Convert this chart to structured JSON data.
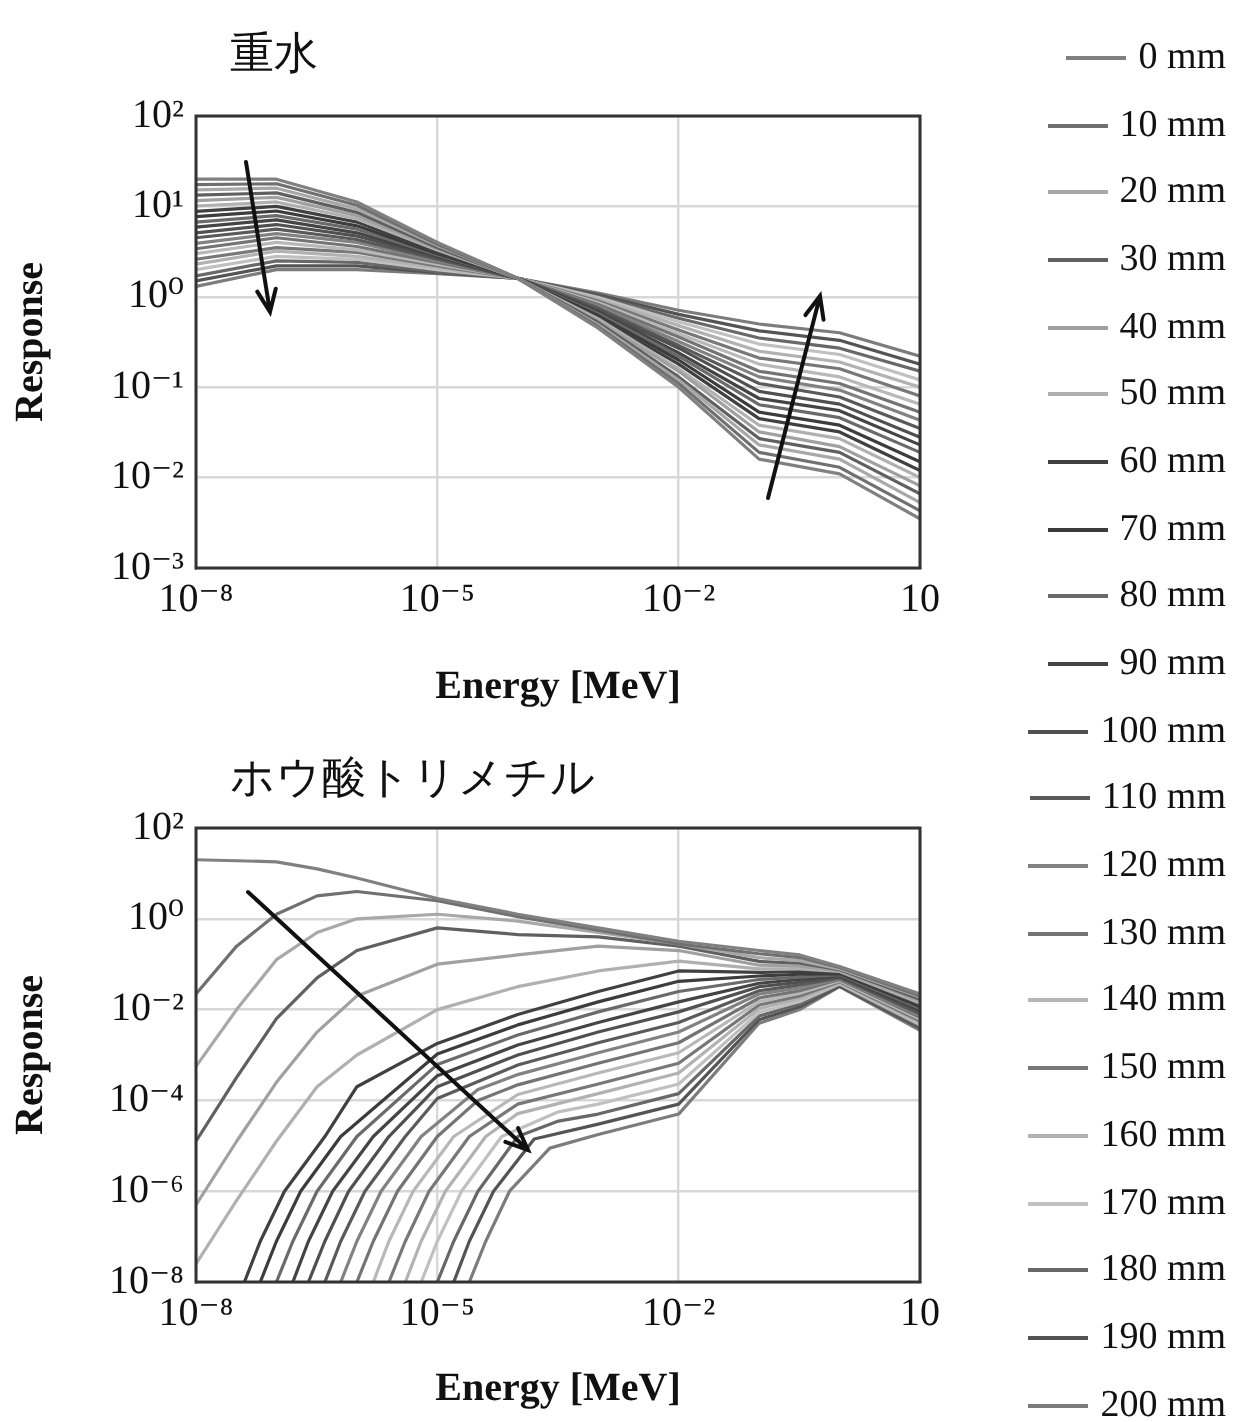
{
  "chart_data": [
    {
      "type": "line",
      "title": "重水",
      "xlabel": "Energy [MeV]",
      "ylabel": "Response",
      "log": "xy",
      "grid": true,
      "legend": "right",
      "marker": "none",
      "line_style": "solid",
      "x": [
        1e-08,
        1e-07,
        1e-06,
        1e-05,
        0.0001,
        0.001,
        0.01,
        0.1,
        1,
        10
      ],
      "xlim": [
        1e-08,
        10
      ],
      "ylim": [
        0.001,
        100
      ],
      "xticks": [
        {
          "value": 1e-08,
          "label": "10⁻⁸"
        },
        {
          "value": 1e-05,
          "label": "10⁻⁵"
        },
        {
          "value": 0.01,
          "label": "10⁻²"
        },
        10
      ],
      "yticks": [
        {
          "value": 0.001,
          "label": "10⁻³"
        },
        {
          "value": 0.01,
          "label": "10⁻²"
        },
        {
          "value": 0.1,
          "label": "10⁻¹"
        },
        {
          "value": 1,
          "label": "10⁰"
        },
        {
          "value": 10,
          "label": "10¹"
        },
        {
          "value": 100,
          "label": "10²"
        }
      ],
      "series": [
        {
          "name": "0 mm",
          "color": "#808080",
          "values": [
            20,
            20,
            11.2,
            4.0,
            1.6,
            0.45,
            0.1,
            0.016,
            0.011,
            0.0035
          ]
        },
        {
          "name": "10 mm",
          "color": "#707070",
          "values": [
            17.4,
            17.8,
            10.3,
            3.8,
            1.6,
            0.47,
            0.11,
            0.019,
            0.013,
            0.0043
          ]
        },
        {
          "name": "20 mm",
          "color": "#a8a8a8",
          "values": [
            15.2,
            15.9,
            9.4,
            3.7,
            1.6,
            0.49,
            0.12,
            0.023,
            0.016,
            0.0053
          ]
        },
        {
          "name": "30 mm",
          "color": "#606060",
          "values": [
            13.3,
            14.1,
            8.6,
            3.5,
            1.6,
            0.52,
            0.13,
            0.027,
            0.019,
            0.0066
          ]
        },
        {
          "name": "40 mm",
          "color": "#a0a0a0",
          "values": [
            11.6,
            12.6,
            7.9,
            3.4,
            1.6,
            0.54,
            0.15,
            0.032,
            0.022,
            0.0081
          ]
        },
        {
          "name": "50 mm",
          "color": "#b0b0b0",
          "values": [
            10.1,
            11.2,
            7.3,
            3.3,
            1.6,
            0.57,
            0.16,
            0.038,
            0.027,
            0.01
          ]
        },
        {
          "name": "60 mm",
          "color": "#404040",
          "values": [
            8.8,
            10,
            6.7,
            3.1,
            1.6,
            0.59,
            0.18,
            0.045,
            0.032,
            0.012
          ]
        },
        {
          "name": "70 mm",
          "color": "#3c3c3c",
          "values": [
            7.7,
            8.9,
            6.1,
            3.0,
            1.6,
            0.62,
            0.2,
            0.053,
            0.038,
            0.015
          ]
        },
        {
          "name": "80 mm",
          "color": "#6a6a6a",
          "values": [
            6.7,
            7.9,
            5.6,
            2.9,
            1.6,
            0.65,
            0.22,
            0.064,
            0.046,
            0.019
          ]
        },
        {
          "name": "90 mm",
          "color": "#444444",
          "values": [
            5.9,
            7.1,
            5.1,
            2.8,
            1.6,
            0.68,
            0.24,
            0.075,
            0.055,
            0.023
          ]
        },
        {
          "name": "100 mm",
          "color": "#505050",
          "values": [
            5.1,
            6.3,
            4.7,
            2.7,
            1.6,
            0.71,
            0.27,
            0.09,
            0.065,
            0.028
          ]
        },
        {
          "name": "110 mm",
          "color": "#5a5a5a",
          "values": [
            4.5,
            5.6,
            4.3,
            2.6,
            1.6,
            0.75,
            0.29,
            0.11,
            0.078,
            0.035
          ]
        },
        {
          "name": "120 mm",
          "color": "#828282",
          "values": [
            3.9,
            5.0,
            4.0,
            2.5,
            1.6,
            0.78,
            0.32,
            0.13,
            0.093,
            0.043
          ]
        },
        {
          "name": "130 mm",
          "color": "#747474",
          "values": [
            3.4,
            4.5,
            3.6,
            2.4,
            1.6,
            0.82,
            0.36,
            0.15,
            0.11,
            0.053
          ]
        },
        {
          "name": "140 mm",
          "color": "#b8b8b8",
          "values": [
            3.0,
            4.0,
            3.3,
            2.3,
            1.6,
            0.86,
            0.39,
            0.18,
            0.13,
            0.065
          ]
        },
        {
          "name": "150 mm",
          "color": "#787878",
          "values": [
            2.6,
            3.5,
            3.1,
            2.2,
            1.6,
            0.9,
            0.43,
            0.21,
            0.16,
            0.08
          ]
        },
        {
          "name": "160 mm",
          "color": "#b2b2b2",
          "values": [
            2.3,
            3.2,
            2.8,
            2.1,
            1.6,
            0.94,
            0.48,
            0.25,
            0.19,
            0.1
          ]
        },
        {
          "name": "170 mm",
          "color": "#c0c0c0",
          "values": [
            2.0,
            2.8,
            2.6,
            2.0,
            1.6,
            0.98,
            0.53,
            0.3,
            0.23,
            0.12
          ]
        },
        {
          "name": "180 mm",
          "color": "#686868",
          "values": [
            1.7,
            2.5,
            2.4,
            1.9,
            1.6,
            1.0,
            0.58,
            0.35,
            0.27,
            0.15
          ]
        },
        {
          "name": "190 mm",
          "color": "#545454",
          "values": [
            1.5,
            2.2,
            2.2,
            1.85,
            1.6,
            1.05,
            0.64,
            0.42,
            0.33,
            0.18
          ]
        },
        {
          "name": "200 mm",
          "color": "#7c7c7c",
          "values": [
            1.3,
            2.0,
            2.0,
            1.8,
            1.6,
            1.1,
            0.71,
            0.5,
            0.4,
            0.22
          ]
        }
      ]
    },
    {
      "type": "line",
      "title": "ホウ酸トリメチル",
      "xlabel": "Energy [MeV]",
      "ylabel": "Response",
      "log": "xy",
      "grid": true,
      "marker": "none",
      "line_style": "solid",
      "x": [
        1e-08,
        3.2e-08,
        1e-07,
        3.2e-07,
        1e-06,
        1e-05,
        0.0001,
        0.001,
        0.01,
        0.1,
        0.32,
        1,
        10
      ],
      "xlim": [
        1e-08,
        10
      ],
      "ylim": [
        1e-08,
        100
      ],
      "xticks": [
        {
          "value": 1e-08,
          "label": "10⁻⁸"
        },
        {
          "value": 1e-05,
          "label": "10⁻⁵"
        },
        {
          "value": 0.01,
          "label": "10⁻²"
        },
        10
      ],
      "yticks": [
        {
          "value": 1e-08,
          "label": "10⁻⁸"
        },
        {
          "value": 1e-06,
          "label": "10⁻⁶"
        },
        {
          "value": 0.0001,
          "label": "10⁻⁴"
        },
        {
          "value": 0.01,
          "label": "10⁻²"
        },
        {
          "value": 1,
          "label": "10⁰"
        },
        {
          "value": 100,
          "label": "10²"
        }
      ],
      "series": [
        {
          "color": "#808080",
          "values": [
            20,
            19,
            18,
            12.6,
            7.9,
            2.8,
            1.26,
            0.63,
            0.32,
            0.2,
            0.16,
            0.089,
            0.022
          ]
        },
        {
          "color": "#707070",
          "values": [
            0.022,
            0.25,
            1.26,
            3.2,
            4.0,
            2.5,
            1.12,
            0.56,
            0.28,
            0.17,
            0.14,
            0.085,
            0.02
          ]
        },
        {
          "color": "#a8a8a8",
          "values": [
            0.00056,
            0.01,
            0.126,
            0.5,
            1.0,
            1.26,
            0.89,
            0.5,
            0.28,
            0.14,
            0.12,
            0.079,
            0.019
          ]
        },
        {
          "color": "#606060",
          "values": [
            1.26e-05,
            0.00032,
            0.0063,
            0.05,
            0.2,
            0.63,
            0.45,
            0.4,
            0.25,
            0.115,
            0.105,
            0.076,
            0.017
          ]
        },
        {
          "color": "#a0a0a0",
          "values": [
            5e-07,
            1.26e-05,
            0.00025,
            0.0032,
            0.02,
            0.1,
            0.16,
            0.25,
            0.2,
            0.095,
            0.091,
            0.072,
            0.0155
          ]
        },
        {
          "color": "#b0b0b0",
          "values": [
            2.5e-08,
            6.3e-07,
            1.26e-05,
            0.0002,
            0.001,
            0.01,
            0.032,
            0.071,
            0.117,
            0.079,
            0.079,
            0.069,
            0.014
          ]
        },
        {
          "color": "#404040",
          "x": [
            4e-08,
            6.3e-08,
            1.26e-07,
            4e-07,
            1e-06,
            1e-05,
            0.0001,
            0.001,
            0.01,
            0.1,
            0.32,
            1,
            10
          ],
          "values": [
            1e-08,
            7.9e-08,
            1e-06,
            1.6e-05,
            0.0002,
            0.0018,
            0.0078,
            0.025,
            0.071,
            0.066,
            0.069,
            0.065,
            0.013
          ]
        },
        {
          "color": "#3c3c3c",
          "x": [
            6.3e-08,
            1e-07,
            2e-07,
            6.3e-07,
            1e-05,
            0.0001,
            0.001,
            0.01,
            0.1,
            0.32,
            1,
            10
          ],
          "values": [
            1e-08,
            7.9e-08,
            1e-06,
            1.6e-05,
            0.00105,
            0.0046,
            0.0148,
            0.042,
            0.055,
            0.06,
            0.062,
            0.0117
          ]
        },
        {
          "color": "#6a6a6a",
          "x": [
            1e-07,
            1.6e-07,
            3.2e-07,
            1e-06,
            1e-05,
            0.0001,
            0.001,
            0.01,
            0.1,
            0.32,
            1,
            10
          ],
          "values": [
            1e-08,
            7.9e-08,
            1e-06,
            1.6e-05,
            0.00062,
            0.00275,
            0.0089,
            0.025,
            0.046,
            0.052,
            0.059,
            0.0107
          ]
        },
        {
          "color": "#444444",
          "x": [
            1.6e-07,
            2.5e-07,
            5e-07,
            1.6e-06,
            1e-05,
            0.0001,
            0.001,
            0.01,
            0.1,
            0.32,
            1,
            10
          ],
          "values": [
            1e-08,
            7.9e-08,
            1e-06,
            1.6e-05,
            0.00035,
            0.00166,
            0.0052,
            0.0148,
            0.038,
            0.046,
            0.056,
            0.0098
          ]
        },
        {
          "color": "#505050",
          "x": [
            2.5e-07,
            4e-07,
            7.9e-07,
            2.5e-06,
            1e-05,
            0.0001,
            0.001,
            0.01,
            0.1,
            0.32,
            1,
            10
          ],
          "values": [
            1e-08,
            7.9e-08,
            1e-06,
            1.6e-05,
            0.0002,
            0.001,
            0.0032,
            0.0089,
            0.032,
            0.04,
            0.053,
            0.0089
          ]
        },
        {
          "color": "#5a5a5a",
          "x": [
            4e-07,
            6.3e-07,
            1.26e-06,
            4e-06,
            1e-05,
            0.0001,
            0.001,
            0.01,
            0.1,
            0.32,
            1,
            10
          ],
          "values": [
            1e-08,
            7.9e-08,
            1e-06,
            1.6e-05,
            0.00011,
            0.0006,
            0.00186,
            0.0052,
            0.026,
            0.035,
            0.05,
            0.0081
          ]
        },
        {
          "color": "#828282",
          "x": [
            6.3e-07,
            1e-06,
            2e-06,
            6.3e-06,
            3.2e-05,
            0.0001,
            0.001,
            0.01,
            0.1,
            0.32,
            1,
            10
          ],
          "values": [
            1e-08,
            7.9e-08,
            1e-06,
            1.6e-05,
            0.000174,
            0.00037,
            0.00112,
            0.0032,
            0.022,
            0.03,
            0.048,
            0.0074
          ]
        },
        {
          "color": "#747474",
          "x": [
            1e-06,
            1.6e-06,
            3.2e-06,
            1e-05,
            3.2e-05,
            0.0001,
            0.001,
            0.01,
            0.1,
            0.32,
            1,
            10
          ],
          "values": [
            1e-08,
            7.9e-08,
            1e-06,
            1.6e-05,
            0.0001,
            0.00022,
            0.00066,
            0.00186,
            0.018,
            0.026,
            0.046,
            0.0068
          ]
        },
        {
          "color": "#b8b8b8",
          "x": [
            1.6e-06,
            2.5e-06,
            5e-06,
            1.6e-05,
            0.0001,
            0.001,
            0.01,
            0.1,
            0.32,
            1,
            10
          ],
          "values": [
            1e-08,
            7.9e-08,
            1e-06,
            1.6e-05,
            0.000135,
            0.0004,
            0.00112,
            0.015,
            0.023,
            0.043,
            0.0062
          ]
        },
        {
          "color": "#787878",
          "x": [
            2.5e-06,
            4e-06,
            7.9e-06,
            2.5e-05,
            0.0001,
            0.001,
            0.01,
            0.1,
            0.32,
            1,
            10
          ],
          "values": [
            1e-08,
            7.9e-08,
            1e-06,
            1.6e-05,
            8.3e-05,
            0.00023,
            0.00066,
            0.0126,
            0.02,
            0.041,
            0.0056
          ]
        },
        {
          "color": "#b2b2b2",
          "x": [
            4e-06,
            6.3e-06,
            1.26e-05,
            4e-05,
            0.0001,
            0.001,
            0.01,
            0.1,
            0.32,
            1,
            10
          ],
          "values": [
            1e-08,
            7.9e-08,
            1e-06,
            1.6e-05,
            5.1e-05,
            0.000141,
            0.0004,
            0.0105,
            0.0174,
            0.039,
            0.0051
          ]
        },
        {
          "color": "#c0c0c0",
          "x": [
            6.3e-06,
            1e-05,
            2e-05,
            6.3e-05,
            0.00032,
            0.001,
            0.01,
            0.1,
            0.32,
            1,
            10
          ],
          "values": [
            1e-08,
            7.9e-08,
            1e-06,
            1.6e-05,
            5.6e-05,
            8.3e-05,
            0.00023,
            0.0087,
            0.0151,
            0.037,
            0.0047
          ]
        },
        {
          "color": "#686868",
          "x": [
            1e-05,
            1.6e-05,
            3.2e-05,
            0.0001,
            0.00032,
            0.001,
            0.01,
            0.1,
            0.32,
            1,
            10
          ],
          "values": [
            1e-08,
            7.9e-08,
            1e-06,
            1.6e-05,
            3.5e-05,
            5e-05,
            0.000141,
            0.0072,
            0.0132,
            0.035,
            0.0043
          ]
        },
        {
          "color": "#545454",
          "x": [
            1.6e-05,
            2.5e-05,
            5e-05,
            0.00016,
            0.001,
            0.01,
            0.1,
            0.32,
            1,
            10
          ],
          "values": [
            1e-08,
            7.9e-08,
            1e-06,
            1.41e-05,
            3e-05,
            8.3e-05,
            0.006,
            0.0115,
            0.033,
            0.0039
          ]
        },
        {
          "color": "#7c7c7c",
          "x": [
            2.5e-05,
            4e-05,
            7.9e-05,
            0.00025,
            0.001,
            0.01,
            0.1,
            0.32,
            1,
            10
          ],
          "values": [
            1e-08,
            7.9e-08,
            1e-06,
            8.9e-06,
            1.78e-05,
            5e-05,
            0.005,
            0.01,
            0.032,
            0.0035
          ]
        }
      ]
    }
  ]
}
